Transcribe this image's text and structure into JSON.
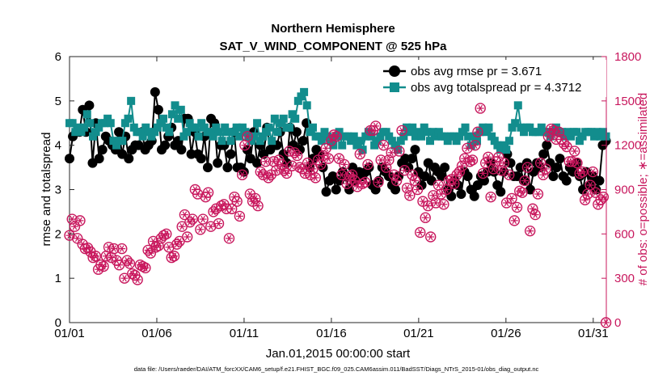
{
  "chart_data": {
    "type": "line",
    "title": "Northern Hemisphere",
    "subtitle": "SAT_V_WIND_COMPONENT @ 525 hPa",
    "xlabel": "Jan.01,2015 00:00:00 start",
    "ylabel_left": "rmse and totalspread",
    "ylabel_right": "# of obs: o=possible; ∗=assimilated",
    "footnote": "data file: /Users/raeder/DAI/ATM_forcXX/CAM6_setup/f.e21.FHIST_BGC.f09_025.CAM6assim.011/BadSST/Diags_NTrS_2015-01/obs_diag_output.nc",
    "xlim": [
      1,
      31.75
    ],
    "ylim_left": [
      0,
      6
    ],
    "ylim_right": [
      0,
      1800
    ],
    "x_ticks": [
      1,
      6,
      11,
      16,
      21,
      26,
      31
    ],
    "x_tick_labels": [
      "01/01",
      "01/06",
      "01/11",
      "01/16",
      "01/21",
      "01/26",
      "01/31"
    ],
    "y_left_ticks": [
      "0",
      "1",
      "2",
      "3",
      "4",
      "5",
      "6"
    ],
    "y_right_ticks": [
      "0",
      "300",
      "600",
      "900",
      "1200",
      "1500",
      "1800"
    ],
    "grid": false,
    "legend_placement": "top-right",
    "colors": {
      "rmse": "#000000",
      "spread": "#128d8d",
      "obs": "#c8175d"
    },
    "series": [
      {
        "name": "obs avg rmse pr = 3.671",
        "axis": "left",
        "marker": "circle",
        "values": [
          3.7,
          4.2,
          4.3,
          4.3,
          4.8,
          4.3,
          4.9,
          3.6,
          4.5,
          3.7,
          3.9,
          4.2,
          4.1,
          4.0,
          3.9,
          4.3,
          3.8,
          4.2,
          3.7,
          3.9,
          4.0,
          4.0,
          4.3,
          3.9,
          4.0,
          4.1,
          5.2,
          4.8,
          3.9,
          4.0,
          4.2,
          4.4,
          4.0,
          4.1,
          3.9,
          4.6,
          4.6,
          3.8,
          4.3,
          3.8,
          3.7,
          4.2,
          3.5,
          4.6,
          4.5,
          3.6,
          4.0,
          4.0,
          3.5,
          3.8,
          4.3,
          3.5,
          3.5,
          3.4,
          3.9,
          3.7,
          4.3,
          3.6,
          4.0,
          3.8,
          4.4,
          3.9,
          4.0,
          4.0,
          4.3,
          3.8,
          3.6,
          4.4,
          4.0,
          4.3,
          3.9,
          4.1,
          4.5,
          3.5,
          3.7,
          3.9,
          3.8,
          3.5,
          2.95,
          3.2,
          3.3,
          3.0,
          3.2,
          3.4,
          3.3,
          3.0,
          3.5,
          3.2,
          3.4,
          3.3,
          3.4,
          3.5,
          3.1,
          3.0,
          3.2,
          3.5,
          3.4,
          3.3,
          3.1,
          3.0,
          3.3,
          3.6,
          3.7,
          3.5,
          3.7,
          3.9,
          3.4,
          3.1,
          3.3,
          3.6,
          3.2,
          3.5,
          3.4,
          3.3,
          3.5,
          3.0,
          2.85,
          3.2,
          3.1,
          2.9,
          3.4,
          3.3,
          3.0,
          2.85,
          3.1,
          3.3,
          3.2,
          3.4,
          3.6,
          3.4,
          3.1,
          2.95,
          3.4,
          3.8,
          3.6,
          3.3,
          3.3,
          3.5,
          3.2,
          3.6,
          3.0,
          3.4,
          3.6,
          3.5,
          3.8,
          4.0,
          3.6,
          3.3,
          3.5,
          3.7,
          3.3,
          3.2,
          3.5,
          3.4,
          3.6,
          3.3,
          3.0,
          3.4,
          3.1,
          3.3,
          3.0,
          3.2,
          4.0,
          4.1
        ]
      },
      {
        "name": "obs avg totalspread pr = 4.3712",
        "axis": "left",
        "marker": "square",
        "values": [
          4.5,
          4.5,
          4.3,
          4.4,
          4.3,
          4.4,
          4.7,
          4.5,
          4.2,
          4.3,
          4.4,
          4.5,
          4.5,
          4.6,
          4.5,
          4.1,
          4.0,
          4.1,
          4.1,
          4.5,
          4.6,
          5.0,
          4.4,
          4.3,
          4.3,
          4.2,
          4.4,
          4.3,
          4.2,
          4.3,
          4.4,
          4.5,
          4.6,
          4.4,
          4.3,
          4.7,
          4.9,
          4.6,
          4.8,
          4.2,
          4.3,
          4.5,
          4.4,
          4.4,
          4.2,
          4.5,
          4.4,
          4.3,
          4.3,
          4.2,
          4.4,
          4.3,
          4.1,
          4.4,
          4.3,
          4.1,
          4.3,
          4.4,
          4.2,
          4.4,
          4.3,
          4.2,
          4.1,
          4.2,
          4.5,
          4.1,
          4.2,
          4.3,
          4.4,
          4.1,
          4.6,
          4.3,
          4.5,
          4.6,
          4.4,
          4.4,
          4.7,
          4.6,
          5.0,
          5.1,
          5.2,
          4.9,
          4.3,
          4.4,
          4.2,
          4.2,
          4.1,
          4.3,
          4.2,
          4.1,
          4.0,
          4.2,
          4.3,
          4.0,
          4.2,
          4.2,
          4.1,
          4.2,
          4.0,
          4.1,
          3.9,
          4.2,
          4.3,
          4.2,
          4.0,
          4.1,
          4.2,
          4.3,
          4.3,
          4.2,
          4.1,
          4.0,
          3.9,
          4.1,
          4.2,
          4.4,
          4.3,
          4.4,
          4.2,
          4.3,
          4.2,
          4.4,
          4.3,
          4.1,
          4.3,
          4.2,
          4.3,
          4.2,
          4.2,
          4.1,
          4.2,
          4.2,
          4.1,
          4.2,
          4.3,
          4.4,
          4.2,
          4.0,
          4.2,
          4.1,
          4.3,
          4.4,
          4.3,
          4.4,
          4.2,
          4.1,
          4.0,
          3.9,
          4.0,
          3.9,
          4.1,
          4.4,
          4.5,
          4.9,
          4.4,
          4.3,
          4.4,
          4.4,
          4.3,
          4.3,
          4.3,
          4.4,
          4.3,
          4.3,
          4.2,
          4.3,
          4.4,
          4.3,
          4.3,
          4.2,
          4.3,
          4.2,
          4.3,
          4.3,
          4.1,
          4.2,
          4.3,
          4.3,
          4.3,
          4.2,
          4.3,
          4.2,
          4.3,
          4.2
        ]
      },
      {
        "name": "# of obs possible",
        "axis": "right",
        "marker": "circle-open",
        "values": [
          590,
          700,
          650,
          570,
          690,
          530,
          500,
          505,
          480,
          440,
          450,
          360,
          390,
          380,
          450,
          510,
          440,
          500,
          420,
          390,
          500,
          300,
          420,
          400,
          330,
          320,
          290,
          390,
          380,
          370,
          490,
          470,
          550,
          510,
          520,
          570,
          590,
          600,
          510,
          440,
          450,
          530,
          550,
          650,
          730,
          580,
          680,
          700,
          900,
          870,
          630,
          700,
          850,
          880,
          650,
          750,
          770,
          670,
          790,
          800,
          770,
          570,
          770,
          850,
          820,
          720,
          1000,
          1200,
          1260,
          870,
          820,
          840,
          790,
          1020,
          1000,
          1090,
          980,
          1000,
          1090,
          1030,
          1100,
          1070,
          1030,
          1010,
          1160,
          1060,
          1150,
          1130,
          1050,
          1040,
          1010,
          1080,
          1000,
          1040,
          980,
          1100,
          1070,
          1130,
          1180,
          1110,
          1230,
          1270,
          1260,
          1110,
          1000,
          1070,
          940,
          990,
          1000,
          960,
          920,
          1140,
          940,
          950,
          1070,
          1300,
          1300,
          1330,
          950,
          1100,
          1200,
          1050,
          1100,
          1150,
          1000,
          960,
          1160,
          1300,
          1030,
          910,
          860,
          1000,
          960,
          900,
          610,
          820,
          710,
          790,
          580,
          860,
          810,
          930,
          870,
          800,
          900,
          960,
          970,
          940,
          1000,
          1020,
          1060,
          1110,
          1180,
          1090,
          1100,
          1200,
          1290,
          1450,
          1010,
          1080,
          1120,
          850,
          1040,
          1090,
          1120,
          1030,
          1080,
          810,
          1000,
          840,
          690,
          780,
          890,
          880,
          960,
          1050,
          620,
          770,
          730,
          870,
          1080,
          1000,
          1040,
          1260,
          1310,
          1300,
          1240,
          1290,
          1240,
          1210,
          1190,
          1090,
          1090,
          1160,
          1080,
          1010,
          1020,
          830,
          870,
          930,
          1020,
          880,
          800,
          830,
          850,
          0
        ]
      }
    ],
    "legend_entries": [
      {
        "label": "obs avg rmse pr = 3.671",
        "color": "#000000",
        "marker": "circle"
      },
      {
        "label": "obs avg totalspread pr = 4.3712",
        "color": "#128d8d",
        "marker": "square"
      }
    ]
  }
}
